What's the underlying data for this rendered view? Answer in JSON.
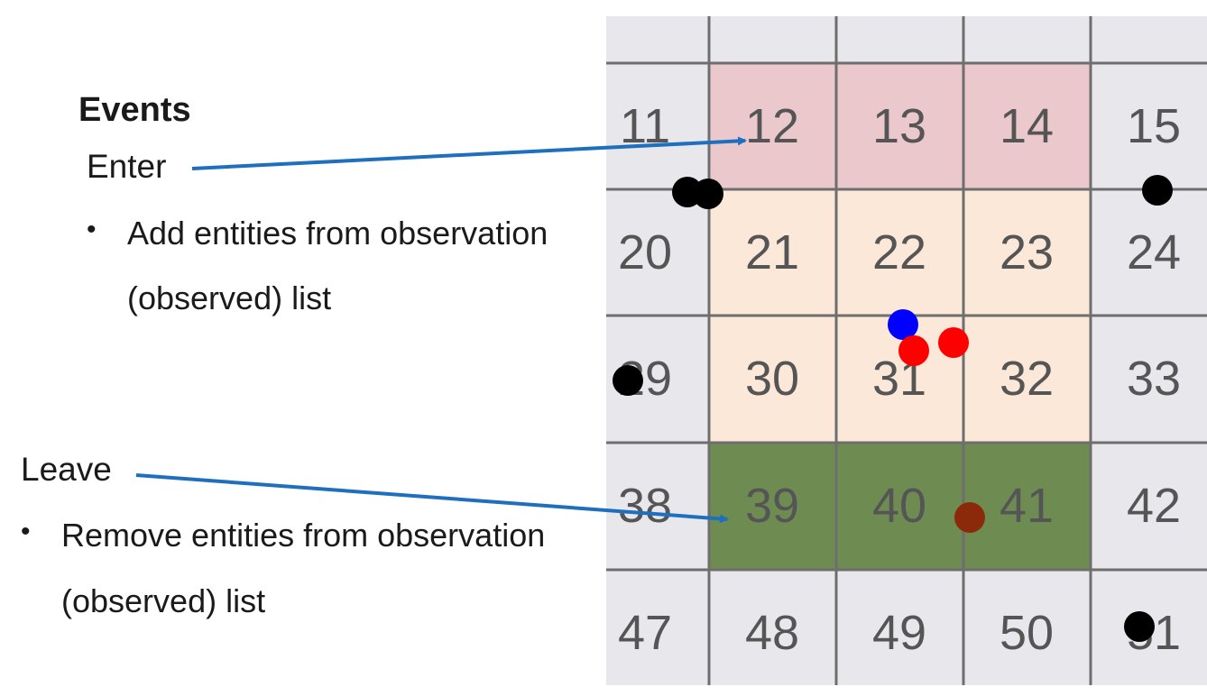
{
  "events": {
    "heading": "Events",
    "enter": {
      "label": "Enter",
      "bullet": "•",
      "line1": "Add entities from observation",
      "line2": "(observed) list"
    },
    "leave": {
      "label": "Leave",
      "bullet": "•",
      "line1": "Remove entities from observation",
      "line2": "(observed) list"
    }
  },
  "grid": {
    "rows": [
      [
        "11",
        "12",
        "13",
        "14",
        "15"
      ],
      [
        "20",
        "21",
        "22",
        "23",
        "24"
      ],
      [
        "29",
        "30",
        "31",
        "32",
        "33"
      ],
      [
        "38",
        "39",
        "40",
        "41",
        "42"
      ],
      [
        "47",
        "48",
        "49",
        "50",
        "51"
      ]
    ],
    "colors": {
      "background": "#e8e8ec",
      "line": "#6e6e6e",
      "text": "#555555",
      "enter_zone": "#ebc8cc",
      "observed_zone": "#fbe8d8",
      "leave_zone": "#6e8c52",
      "arrow": "#1f6fbf"
    }
  },
  "entity_colors": {
    "other": "#000000",
    "observer": "#0000ff",
    "observed": "#ff0000",
    "leaving": "#8b2a0a"
  }
}
